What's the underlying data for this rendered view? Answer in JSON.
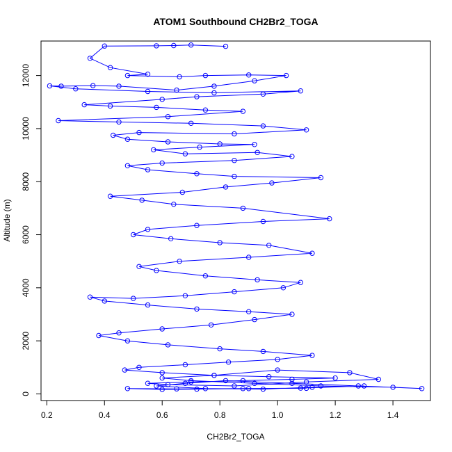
{
  "chart_data": {
    "type": "scatter",
    "title": "ATOM1 Southbound CH2Br2_TOGA",
    "xlabel": "CH2Br2_TOGA",
    "ylabel": "Altitude (m)",
    "xlim": [
      0.18,
      1.53
    ],
    "ylim": [
      -250,
      13300
    ],
    "xticks": [
      0.2,
      0.4,
      0.6,
      0.8,
      1.0,
      1.2,
      1.4
    ],
    "xtick_labels": [
      "0.2",
      "0.4",
      "0.6",
      "0.8",
      "1.0",
      "1.2",
      "1.4"
    ],
    "yticks": [
      0,
      2000,
      4000,
      6000,
      8000,
      10000,
      12000
    ],
    "ytick_labels": [
      "0",
      "2000",
      "4000",
      "6000",
      "8000",
      "10000",
      "12000"
    ],
    "series": [
      {
        "name": "CH2Br2_TOGA",
        "color": "#0000ff",
        "marker": "open-circle",
        "connected": true,
        "x": [
          0.82,
          0.7,
          0.64,
          0.58,
          0.4,
          0.35,
          0.42,
          0.55,
          0.48,
          0.66,
          0.75,
          0.9,
          1.03,
          0.92,
          0.78,
          0.65,
          0.45,
          0.36,
          0.25,
          0.21,
          0.3,
          0.55,
          0.78,
          1.08,
          0.95,
          0.72,
          0.6,
          0.33,
          0.42,
          0.58,
          0.75,
          0.88,
          0.62,
          0.24,
          0.45,
          0.7,
          0.95,
          1.1,
          0.85,
          0.52,
          0.43,
          0.48,
          0.62,
          0.8,
          0.92,
          0.73,
          0.57,
          0.68,
          0.93,
          1.05,
          0.85,
          0.6,
          0.48,
          0.55,
          0.72,
          0.85,
          1.15,
          0.98,
          0.82,
          0.67,
          0.42,
          0.53,
          0.64,
          0.88,
          1.18,
          0.95,
          0.72,
          0.55,
          0.5,
          0.63,
          0.8,
          0.97,
          1.12,
          0.9,
          0.66,
          0.52,
          0.58,
          0.75,
          0.93,
          1.08,
          1.02,
          0.85,
          0.68,
          0.5,
          0.35,
          0.4,
          0.55,
          0.72,
          0.9,
          1.05,
          0.92,
          0.77,
          0.6,
          0.45,
          0.38,
          0.48,
          0.62,
          0.8,
          0.95,
          1.12,
          1.0,
          0.83,
          0.68,
          0.52,
          0.47,
          0.6,
          0.78,
          0.97,
          1.2,
          1.05,
          0.88,
          0.7,
          0.55,
          0.62,
          0.85,
          1.1,
          1.35,
          1.25,
          1.0,
          0.78,
          0.6,
          0.7,
          0.92,
          1.15,
          1.4,
          1.5,
          1.28,
          1.05,
          0.82,
          0.68,
          0.58,
          0.75,
          0.95,
          1.12,
          1.3,
          1.08,
          0.9,
          0.72,
          0.6,
          0.48,
          0.65,
          0.88,
          1.1
        ],
        "y": [
          13100,
          13150,
          13130,
          13120,
          13110,
          12650,
          12300,
          12050,
          12000,
          11950,
          12000,
          12020,
          12000,
          11800,
          11600,
          11450,
          11600,
          11620,
          11600,
          11610,
          11500,
          11400,
          11350,
          11420,
          11300,
          11200,
          11100,
          10900,
          10850,
          10800,
          10700,
          10650,
          10450,
          10300,
          10250,
          10200,
          10100,
          9950,
          9800,
          9850,
          9750,
          9600,
          9500,
          9420,
          9400,
          9300,
          9200,
          9050,
          9100,
          8950,
          8800,
          8700,
          8600,
          8450,
          8300,
          8200,
          8150,
          7950,
          7800,
          7600,
          7450,
          7300,
          7150,
          7000,
          6600,
          6500,
          6350,
          6200,
          6000,
          5850,
          5700,
          5600,
          5300,
          5150,
          5000,
          4800,
          4650,
          4450,
          4300,
          4200,
          4000,
          3850,
          3700,
          3600,
          3650,
          3500,
          3350,
          3200,
          3100,
          3000,
          2800,
          2600,
          2450,
          2300,
          2200,
          2000,
          1850,
          1700,
          1600,
          1450,
          1300,
          1200,
          1100,
          1000,
          900,
          800,
          700,
          650,
          600,
          550,
          500,
          450,
          400,
          350,
          300,
          450,
          550,
          800,
          900,
          700,
          600,
          500,
          400,
          300,
          250,
          200,
          300,
          400,
          500,
          400,
          300,
          200,
          180,
          250,
          300,
          220,
          200,
          180,
          170,
          200,
          190,
          200,
          210
        ]
      }
    ]
  }
}
